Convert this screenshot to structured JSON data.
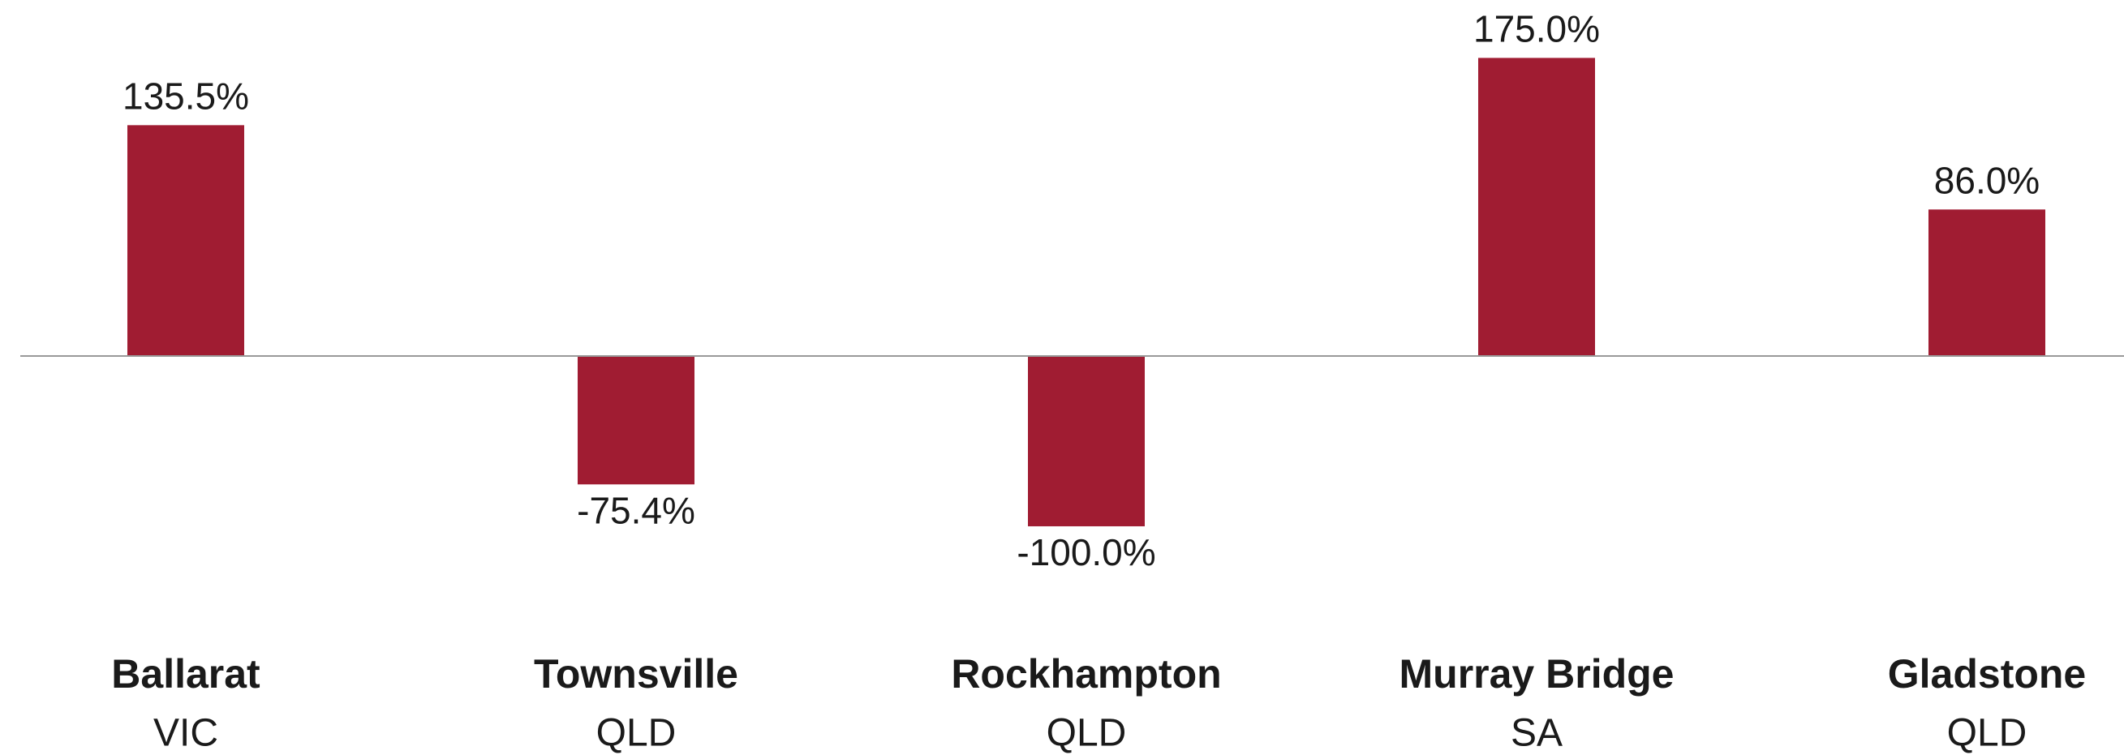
{
  "chart_data": {
    "type": "bar",
    "categories": [
      "Ballarat",
      "Townsville",
      "Rockhampton",
      "Murray Bridge",
      "Gladstone"
    ],
    "category_states": [
      "VIC",
      "QLD",
      "QLD",
      "SA",
      "QLD"
    ],
    "values": [
      135.5,
      -75.4,
      -100.0,
      175.0,
      86.0
    ],
    "value_labels": [
      "135.5%",
      "-75.4%",
      "-100.0%",
      "175.0%",
      "86.0%"
    ],
    "color": "#a01c32",
    "ylim": [
      -200,
      209
    ]
  }
}
